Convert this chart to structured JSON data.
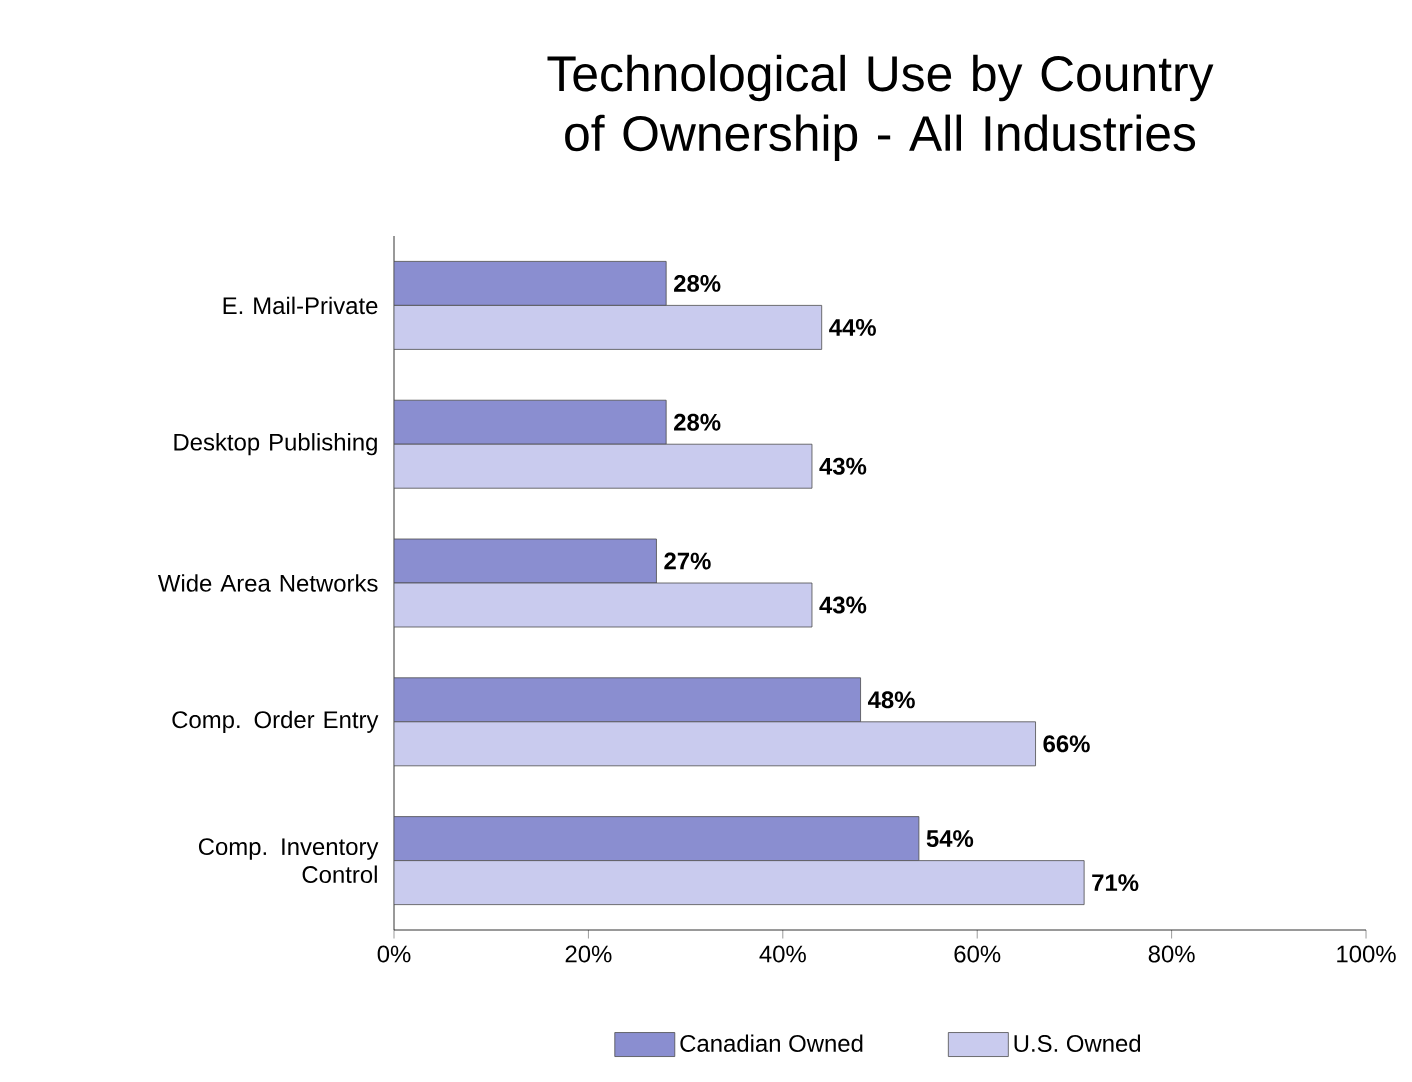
{
  "chart_data": {
    "type": "bar",
    "orientation": "horizontal",
    "title": "Technological Use by Country of Ownership - All Industries",
    "categories": [
      "E. Mail-Private",
      "Desktop Publishing",
      "Wide Area Networks",
      "Comp. Order Entry",
      "Comp. Inventory Control"
    ],
    "series": [
      {
        "name": "Canadian Owned",
        "color": "#8a8ed0",
        "values": [
          28,
          28,
          27,
          48,
          54
        ],
        "value_labels": [
          "28%",
          "28%",
          "27%",
          "48%",
          "54%"
        ]
      },
      {
        "name": "U.S. Owned",
        "color": "#c9cbee",
        "values": [
          44,
          43,
          43,
          66,
          71
        ],
        "value_labels": [
          "44%",
          "43%",
          "43%",
          "66%",
          "71%"
        ]
      }
    ],
    "xlim": [
      0,
      100
    ],
    "xticks": [
      {
        "value": 0,
        "label": "0%"
      },
      {
        "value": 20,
        "label": "20%"
      },
      {
        "value": 40,
        "label": "40%"
      },
      {
        "value": 60,
        "label": "60%"
      },
      {
        "value": 80,
        "label": "80%"
      },
      {
        "value": 100,
        "label": "100%"
      }
    ],
    "legend": "bottom",
    "grid": false
  }
}
